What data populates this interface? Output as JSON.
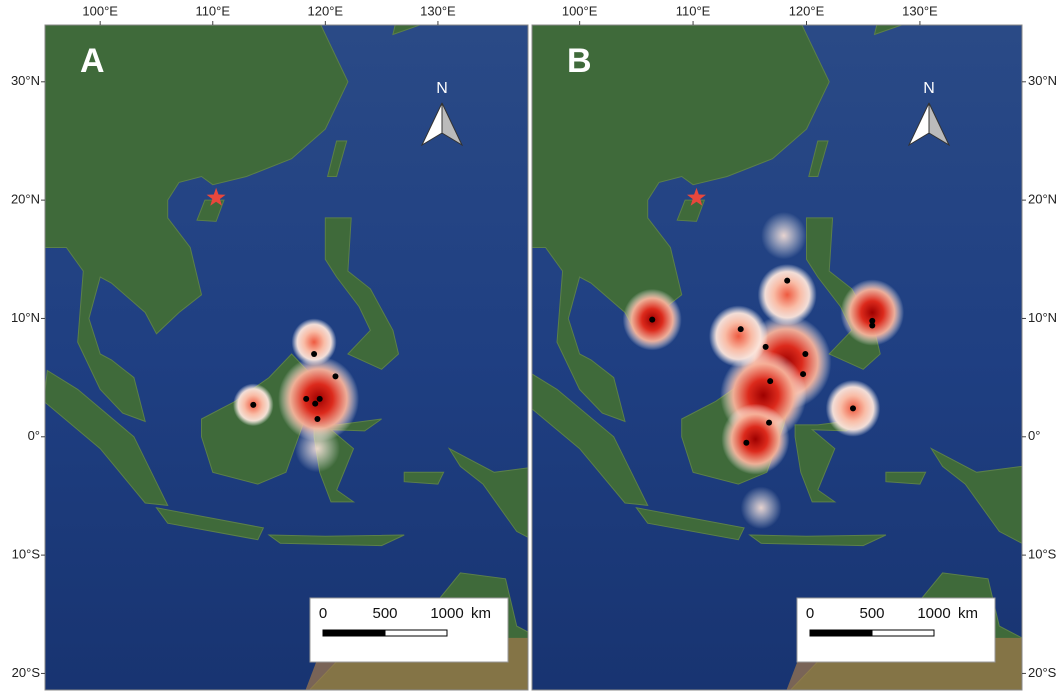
{
  "panels": [
    {
      "label": "A",
      "xticks": [
        {
          "value": 100,
          "label": "100°E"
        },
        {
          "value": 110,
          "label": "110°E"
        },
        {
          "value": 120,
          "label": "120°E"
        },
        {
          "value": 130,
          "label": "130°E"
        }
      ],
      "yticks": [
        {
          "value": 30,
          "label": "30°N"
        },
        {
          "value": 20,
          "label": "20°N"
        },
        {
          "value": 10,
          "label": "10°N"
        },
        {
          "value": 0,
          "label": "0°"
        },
        {
          "value": -10,
          "label": "10°S"
        },
        {
          "value": -20,
          "label": "20°S"
        }
      ],
      "xlim": [
        95.1,
        138
      ],
      "ylim": [
        -21.4,
        34.8
      ],
      "points": {
        "lon": [
          113.6,
          119.0,
          120.9,
          118.3,
          119.1,
          119.5,
          119.3
        ],
        "lat": [
          2.7,
          7.0,
          5.1,
          3.2,
          2.8,
          3.2,
          1.5
        ]
      }
    },
    {
      "label": "B",
      "xticks": [
        {
          "value": 100,
          "label": "100°E"
        },
        {
          "value": 110,
          "label": "110°E"
        },
        {
          "value": 120,
          "label": "120°E"
        },
        {
          "value": 130,
          "label": "130°E"
        }
      ],
      "yticks": [
        {
          "value": 30,
          "label": "30°N"
        },
        {
          "value": 20,
          "label": "20°N"
        },
        {
          "value": 10,
          "label": "10°N"
        },
        {
          "value": 0,
          "label": "0°"
        },
        {
          "value": -10,
          "label": "10°S"
        },
        {
          "value": -20,
          "label": "20°S"
        }
      ],
      "xlim": [
        95.8,
        139
      ],
      "ylim": [
        -21.4,
        34.8
      ],
      "points": {
        "lon": [
          106.4,
          114.2,
          116.4,
          118.3,
          119.9,
          119.7,
          116.8,
          125.8,
          125.8,
          124.1,
          116.7,
          114.7
        ],
        "lat": [
          9.9,
          9.1,
          7.6,
          13.2,
          7.0,
          5.3,
          4.7,
          9.8,
          9.4,
          2.4,
          1.2,
          -0.5
        ]
      }
    }
  ],
  "north_label": "N",
  "scale_bar": {
    "ticks": [
      0,
      500,
      1000
    ],
    "unit": "km"
  }
}
